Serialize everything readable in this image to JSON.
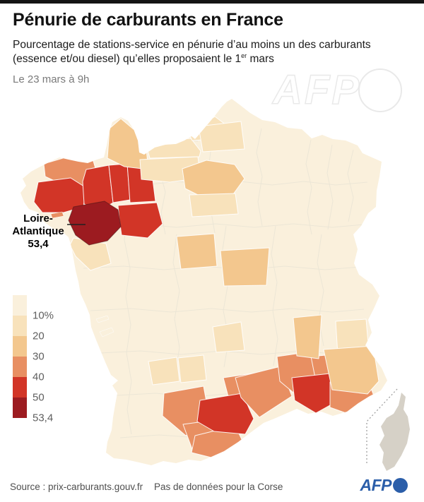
{
  "header": {
    "title": "Pénurie de carburants en France",
    "subtitle_before": "Pourcentage de stations-service en pénurie d’au moins un des carburants (essence et/ou diesel) qu’elles proposaient le 1",
    "subtitle_sup": "er",
    "subtitle_after": " mars",
    "date": "Le 23 mars à 9h"
  },
  "watermark": {
    "text": "AFP"
  },
  "annotation": {
    "line1": "Loire-",
    "line2": "Atlantique",
    "value": "53,4"
  },
  "legend": {
    "labels": [
      "10%",
      "20",
      "30",
      "40",
      "50",
      "53,4"
    ],
    "colors": [
      "#FAF0DC",
      "#F8E2BB",
      "#F3C78E",
      "#E88F62",
      "#D23527",
      "#9C1B20"
    ]
  },
  "footer": {
    "source": "Source : prix-carburants.gouv.fr",
    "note": "Pas de données pour la Corse",
    "logo": "AFP"
  },
  "map_data": {
    "type": "choropleth",
    "unit": "% de stations-service en pénurie",
    "scale_breaks": [
      "10%",
      "20",
      "30",
      "40",
      "50",
      "53,4"
    ],
    "palette": [
      "#FAF0DC",
      "#F8E2BB",
      "#F3C78E",
      "#E88F62",
      "#D23527",
      "#9C1B20"
    ],
    "base_color": "#FAF0DC",
    "no_data_color": "#D6D1C7",
    "no_data_regions": [
      "Corse"
    ],
    "highlight": {
      "name": "Loire-Atlantique",
      "value": "53,4"
    },
    "regions": [
      {
        "id": "cotes-darmor",
        "level": 3
      },
      {
        "id": "morbihan",
        "level": 4
      },
      {
        "id": "ille-et-vilaine",
        "level": 4
      },
      {
        "id": "mayenne",
        "level": 4
      },
      {
        "id": "sarthe",
        "level": 4
      },
      {
        "id": "vendee",
        "level": 1
      },
      {
        "id": "manche",
        "level": 2
      },
      {
        "id": "calvados",
        "level": 1
      },
      {
        "id": "orne",
        "level": 1
      },
      {
        "id": "seine-maritime",
        "level": 1
      },
      {
        "id": "picardie",
        "level": 1
      },
      {
        "id": "ile-de-france",
        "level": 2
      },
      {
        "id": "beauce",
        "level": 1
      },
      {
        "id": "loir-et-cher-indre",
        "level": 2
      },
      {
        "id": "cher-nievre",
        "level": 2
      },
      {
        "id": "correze",
        "level": 1
      },
      {
        "id": "tarn-et-garonne",
        "level": 1
      },
      {
        "id": "haute-garonne",
        "level": 3
      },
      {
        "id": "tarn",
        "level": 3
      },
      {
        "id": "ariege",
        "level": 3
      },
      {
        "id": "pyrenees-orientales",
        "level": 3
      },
      {
        "id": "aude",
        "level": 4
      },
      {
        "id": "herault",
        "level": 3
      },
      {
        "id": "gard",
        "level": 3
      },
      {
        "id": "vaucluse",
        "level": 3
      },
      {
        "id": "bouches-du-rhone",
        "level": 4
      },
      {
        "id": "var",
        "level": 3
      },
      {
        "id": "hautes-alpes",
        "level": 1
      },
      {
        "id": "alpes-haute-provence",
        "level": 2
      },
      {
        "id": "drome",
        "level": 2
      },
      {
        "id": "aveyron",
        "level": 1
      },
      {
        "id": "belle-ile",
        "level": 3
      },
      {
        "id": "ile-de-re",
        "level": 0
      },
      {
        "id": "ile-oleron",
        "level": 0
      },
      {
        "id": "maine-et-loire",
        "level": 4
      },
      {
        "id": "loire-atlantique",
        "level": 5
      }
    ]
  }
}
